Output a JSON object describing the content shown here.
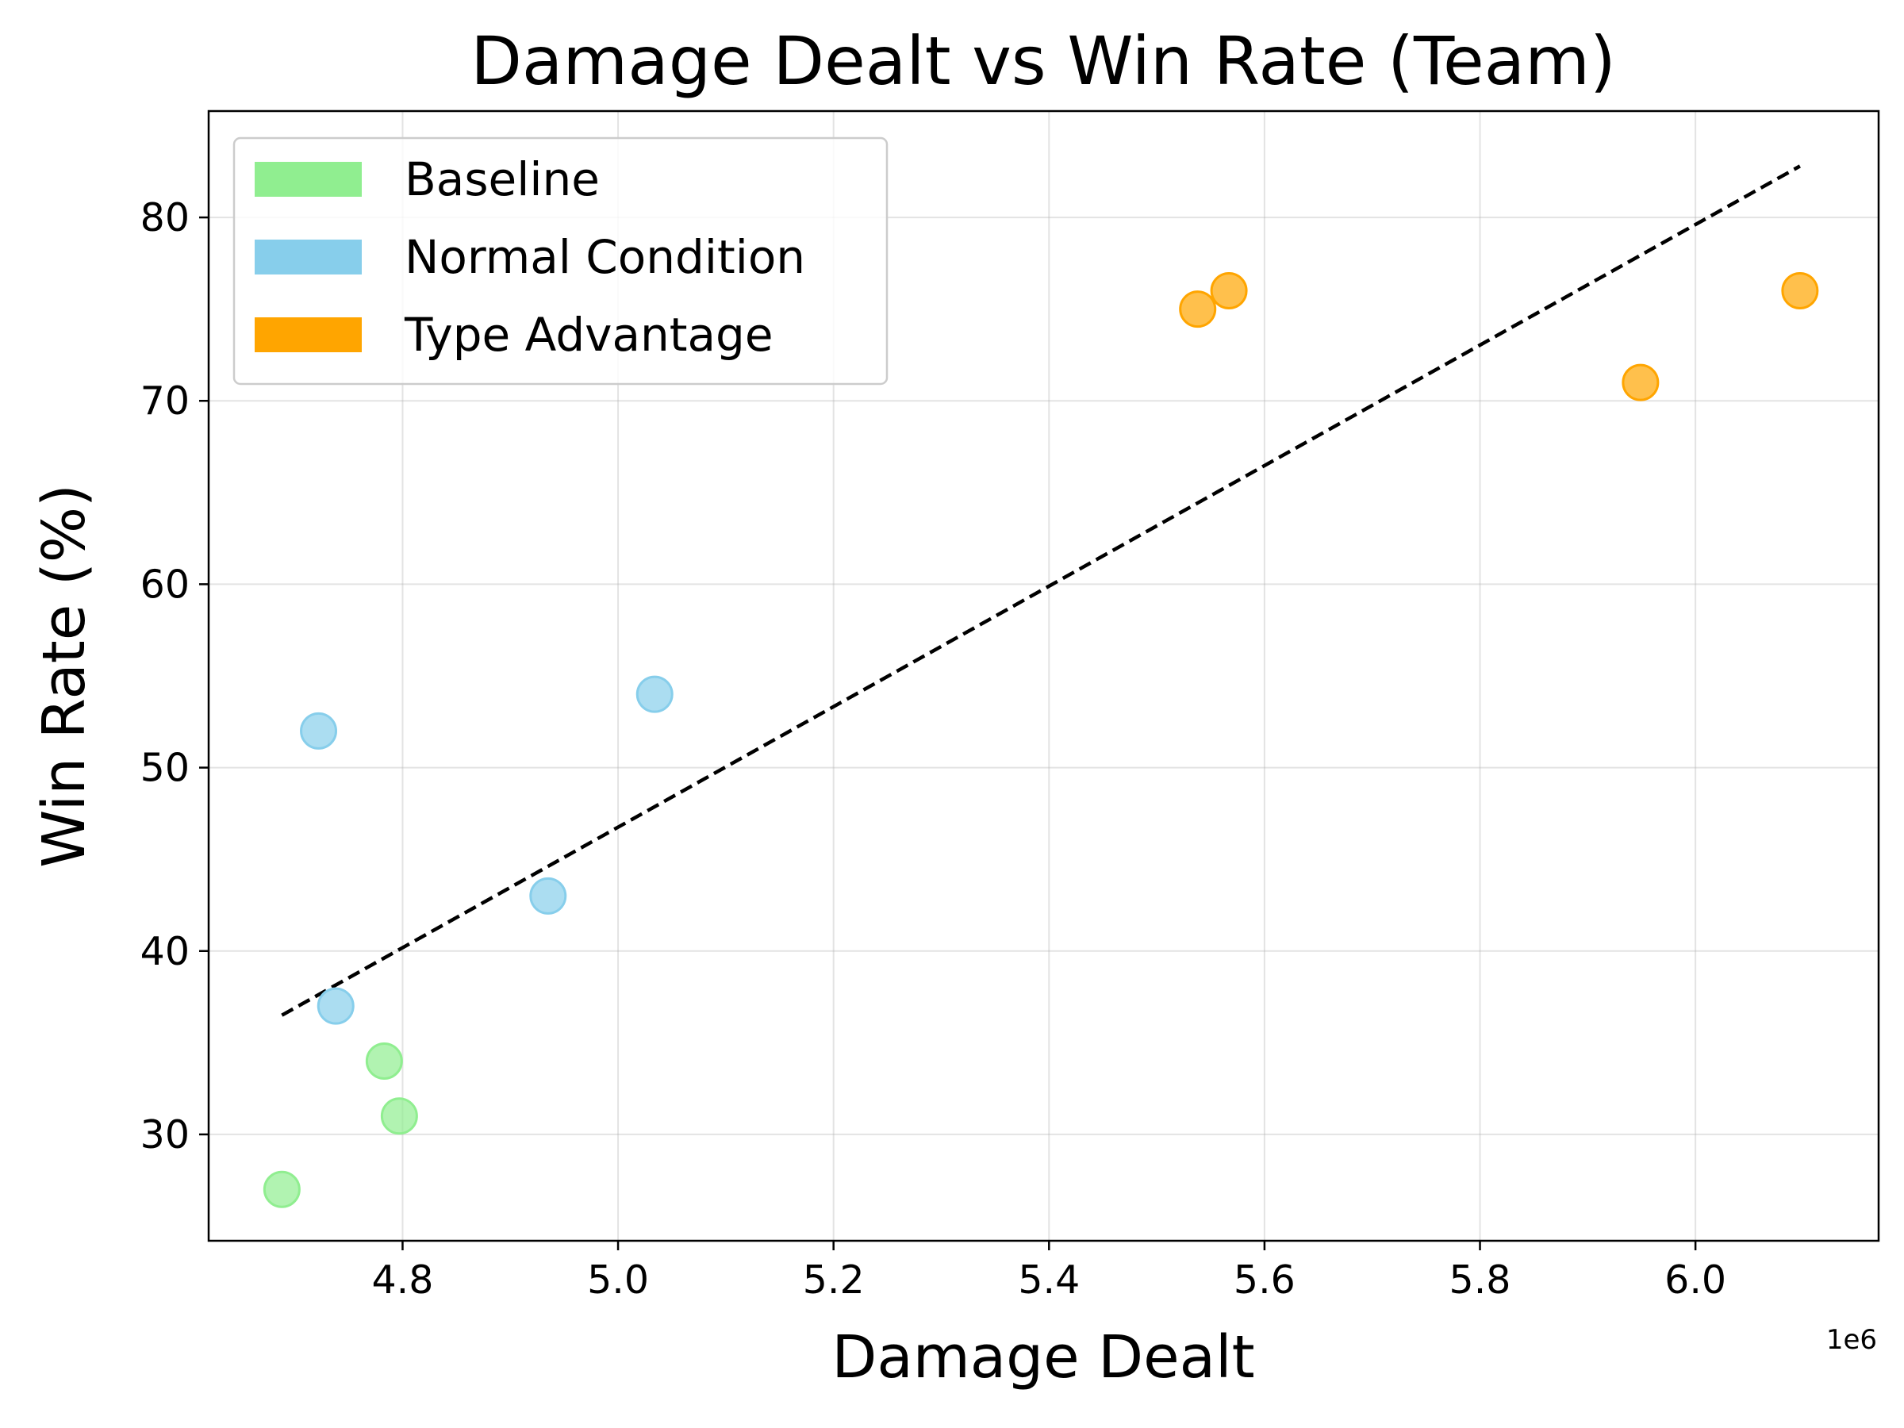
{
  "chart_data": {
    "type": "scatter",
    "title": "Damage Dealt vs Win Rate (Team)",
    "xlabel": "Damage Dealt",
    "ylabel": "Win Rate (%)",
    "x_offset_label": "1e6",
    "xlim": [
      4.62,
      6.17
    ],
    "ylim": [
      24.2,
      85.8
    ],
    "x_ticks": [
      {
        "value": 4.8,
        "label": "4.8"
      },
      {
        "value": 5.0,
        "label": "5.0"
      },
      {
        "value": 5.2,
        "label": "5.2"
      },
      {
        "value": 5.4,
        "label": "5.4"
      },
      {
        "value": 5.6,
        "label": "5.6"
      },
      {
        "value": 5.8,
        "label": "5.8"
      },
      {
        "value": 6.0,
        "label": "6.0"
      }
    ],
    "y_ticks": [
      {
        "value": 30,
        "label": "30"
      },
      {
        "value": 40,
        "label": "40"
      },
      {
        "value": 50,
        "label": "50"
      },
      {
        "value": 60,
        "label": "60"
      },
      {
        "value": 70,
        "label": "70"
      },
      {
        "value": 80,
        "label": "80"
      }
    ],
    "grid": true,
    "legend_position": "top-left",
    "series": [
      {
        "name": "Baseline",
        "color": "#90ee90",
        "points": [
          {
            "x": 4.688,
            "y": 27
          },
          {
            "x": 4.783,
            "y": 34
          },
          {
            "x": 4.797,
            "y": 31
          }
        ]
      },
      {
        "name": "Normal Condition",
        "color": "#87ceeb",
        "points": [
          {
            "x": 4.722,
            "y": 52
          },
          {
            "x": 4.738,
            "y": 37
          },
          {
            "x": 4.935,
            "y": 43
          },
          {
            "x": 5.034,
            "y": 54
          }
        ]
      },
      {
        "name": "Type Advantage",
        "color": "#ffa500",
        "points": [
          {
            "x": 5.538,
            "y": 75
          },
          {
            "x": 5.567,
            "y": 76
          },
          {
            "x": 5.949,
            "y": 71
          },
          {
            "x": 6.097,
            "y": 76
          }
        ]
      }
    ],
    "trendline": {
      "style": "dashed",
      "color": "#000000",
      "start": {
        "x": 4.688,
        "y": 36.5
      },
      "end": {
        "x": 6.097,
        "y": 82.8
      }
    }
  }
}
